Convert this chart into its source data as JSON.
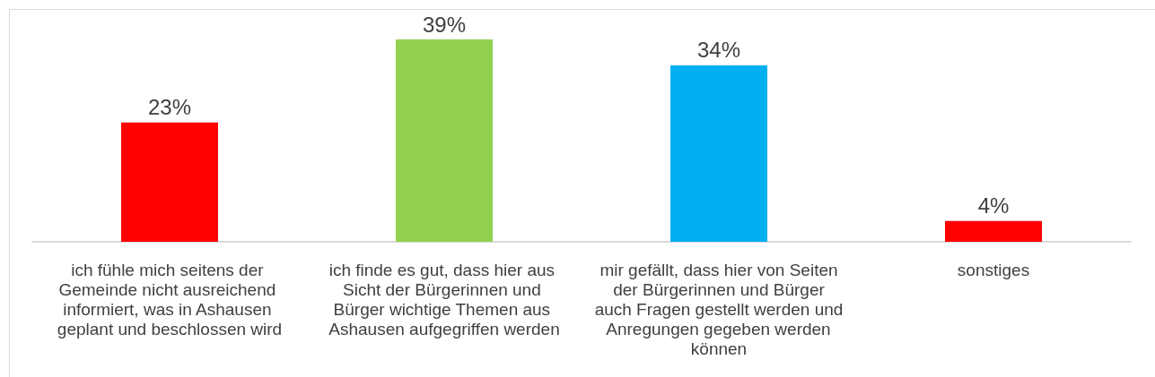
{
  "chart_data": {
    "type": "bar",
    "categories": [
      "ich fühle mich seitens der Gemeinde nicht ausreichend informiert, was in Ashausen geplant und beschlossen wird",
      "ich finde es gut, dass hier aus Sicht der Bürgerinnen und Bürger wichtige Themen aus Ashausen aufgegriffen werden",
      "mir gefällt, dass hier von Seiten der Bürgerinnen und Bürger auch Fragen gestellt werden und Anregungen gegeben werden können",
      "sonstiges"
    ],
    "values": [
      23,
      39,
      34,
      4
    ],
    "colors": [
      "#ff0000",
      "#92d050",
      "#00b0f0",
      "#ff0000"
    ],
    "value_labels": [
      "23%",
      "39%",
      "34%",
      "4%"
    ]
  }
}
